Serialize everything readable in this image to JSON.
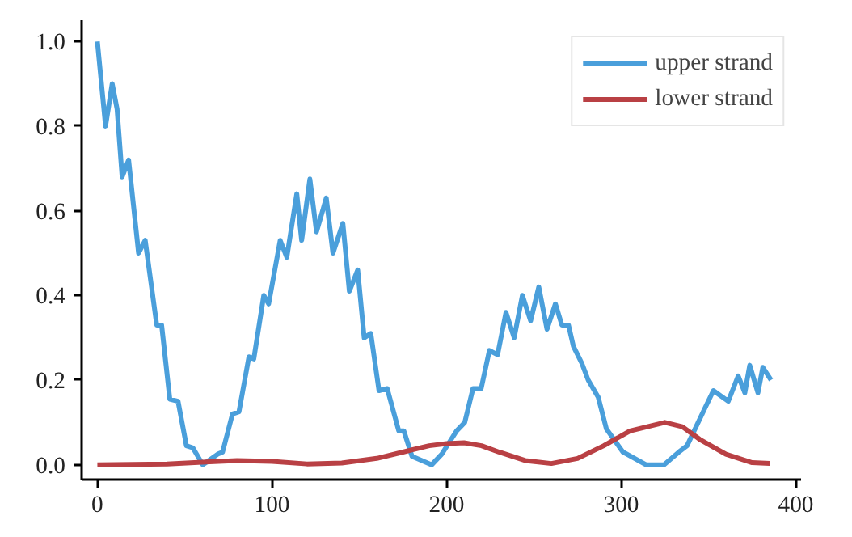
{
  "chart_data": {
    "type": "line",
    "xlim": [
      -9,
      403
    ],
    "ylim": [
      -0.035,
      1.05
    ],
    "xticks": [
      0,
      100,
      200,
      300,
      400
    ],
    "yticks": [
      {
        "value": 0,
        "label": "0.0"
      },
      {
        "value": 0.2,
        "label": "0.2"
      },
      {
        "value": 0.4,
        "label": "0.4"
      },
      {
        "value": 0.6,
        "label": "0.6"
      },
      {
        "value": 0.8,
        "label": "0.8"
      },
      {
        "value": 1,
        "label": "1.0"
      }
    ],
    "grid": false,
    "legend": "top right",
    "line_style": "solid",
    "series": [
      {
        "name": "upper strand",
        "color": "#4a9fdb",
        "x": [
          0,
          4.7,
          8.5,
          11.3,
          14.2,
          17.9,
          23.6,
          27.4,
          34,
          36.8,
          41.5,
          46.2,
          51,
          54.7,
          60.4,
          68.9,
          71.7,
          77.4,
          81.1,
          86.8,
          89.6,
          95.3,
          98.1,
          104.7,
          108.5,
          114.2,
          117,
          121.7,
          125.5,
          131.1,
          134.9,
          140.6,
          144.3,
          149.1,
          152.8,
          156.6,
          161.3,
          166,
          172.6,
          175.5,
          180.2,
          191.5,
          197.2,
          205.7,
          210.4,
          215.1,
          219.8,
          224.5,
          229.2,
          234,
          238.7,
          243.4,
          248.1,
          252.8,
          257.5,
          262.3,
          266,
          269.8,
          272.6,
          277.4,
          281.1,
          286.8,
          291.5,
          301,
          314.2,
          324.5,
          333,
          337.7,
          348.1,
          352.8,
          361.3,
          367,
          370.8,
          373.6,
          378.3,
          381.1,
          385.8
        ],
        "values": [
          1.0,
          0.8,
          0.9,
          0.84,
          0.68,
          0.72,
          0.5,
          0.53,
          0.33,
          0.33,
          0.155,
          0.15,
          0.045,
          0.04,
          0.0,
          0.025,
          0.03,
          0.12,
          0.125,
          0.255,
          0.25,
          0.4,
          0.38,
          0.53,
          0.49,
          0.64,
          0.53,
          0.675,
          0.55,
          0.63,
          0.5,
          0.57,
          0.41,
          0.46,
          0.3,
          0.31,
          0.175,
          0.18,
          0.08,
          0.08,
          0.02,
          0.0,
          0.025,
          0.08,
          0.1,
          0.18,
          0.18,
          0.27,
          0.26,
          0.36,
          0.3,
          0.4,
          0.34,
          0.42,
          0.32,
          0.38,
          0.33,
          0.33,
          0.28,
          0.24,
          0.2,
          0.16,
          0.085,
          0.03,
          0.0,
          0.0,
          0.03,
          0.045,
          0.135,
          0.175,
          0.15,
          0.21,
          0.17,
          0.235,
          0.17,
          0.23,
          0.2
        ]
      },
      {
        "name": "lower strand",
        "color": "#b94044",
        "x": [
          0,
          40,
          60,
          80,
          100,
          120,
          140,
          160,
          175,
          190,
          200,
          210,
          220,
          230,
          245,
          260,
          275,
          290,
          305,
          315,
          325,
          335,
          345,
          360,
          375,
          385
        ],
        "values": [
          0,
          0.002,
          0.006,
          0.01,
          0.008,
          0.002,
          0.004,
          0.015,
          0.03,
          0.045,
          0.05,
          0.052,
          0.045,
          0.03,
          0.01,
          0.003,
          0.015,
          0.045,
          0.08,
          0.09,
          0.1,
          0.09,
          0.06,
          0.025,
          0.005,
          0.003
        ]
      }
    ]
  }
}
